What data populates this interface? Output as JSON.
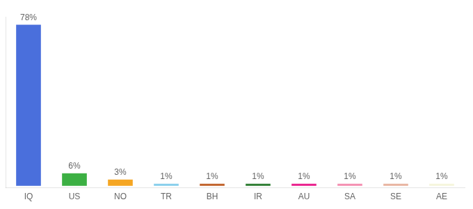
{
  "chart_data": {
    "type": "bar",
    "categories": [
      "IQ",
      "US",
      "NO",
      "TR",
      "BH",
      "IR",
      "AU",
      "SA",
      "SE",
      "AE"
    ],
    "values": [
      78,
      6,
      3,
      1,
      1,
      1,
      1,
      1,
      1,
      1
    ],
    "value_labels": [
      "78%",
      "6%",
      "3%",
      "1%",
      "1%",
      "1%",
      "1%",
      "1%",
      "1%",
      "1%"
    ],
    "colors": [
      "#4a6fdc",
      "#3cb043",
      "#f5a623",
      "#87ceeb",
      "#c0622a",
      "#2e7d32",
      "#e91e8c",
      "#f48fb1",
      "#e8b4a0",
      "#f5f5dc"
    ],
    "ylim": [
      -1,
      81.9
    ],
    "data_labels": true,
    "tick_labels": "x",
    "grid": false
  }
}
